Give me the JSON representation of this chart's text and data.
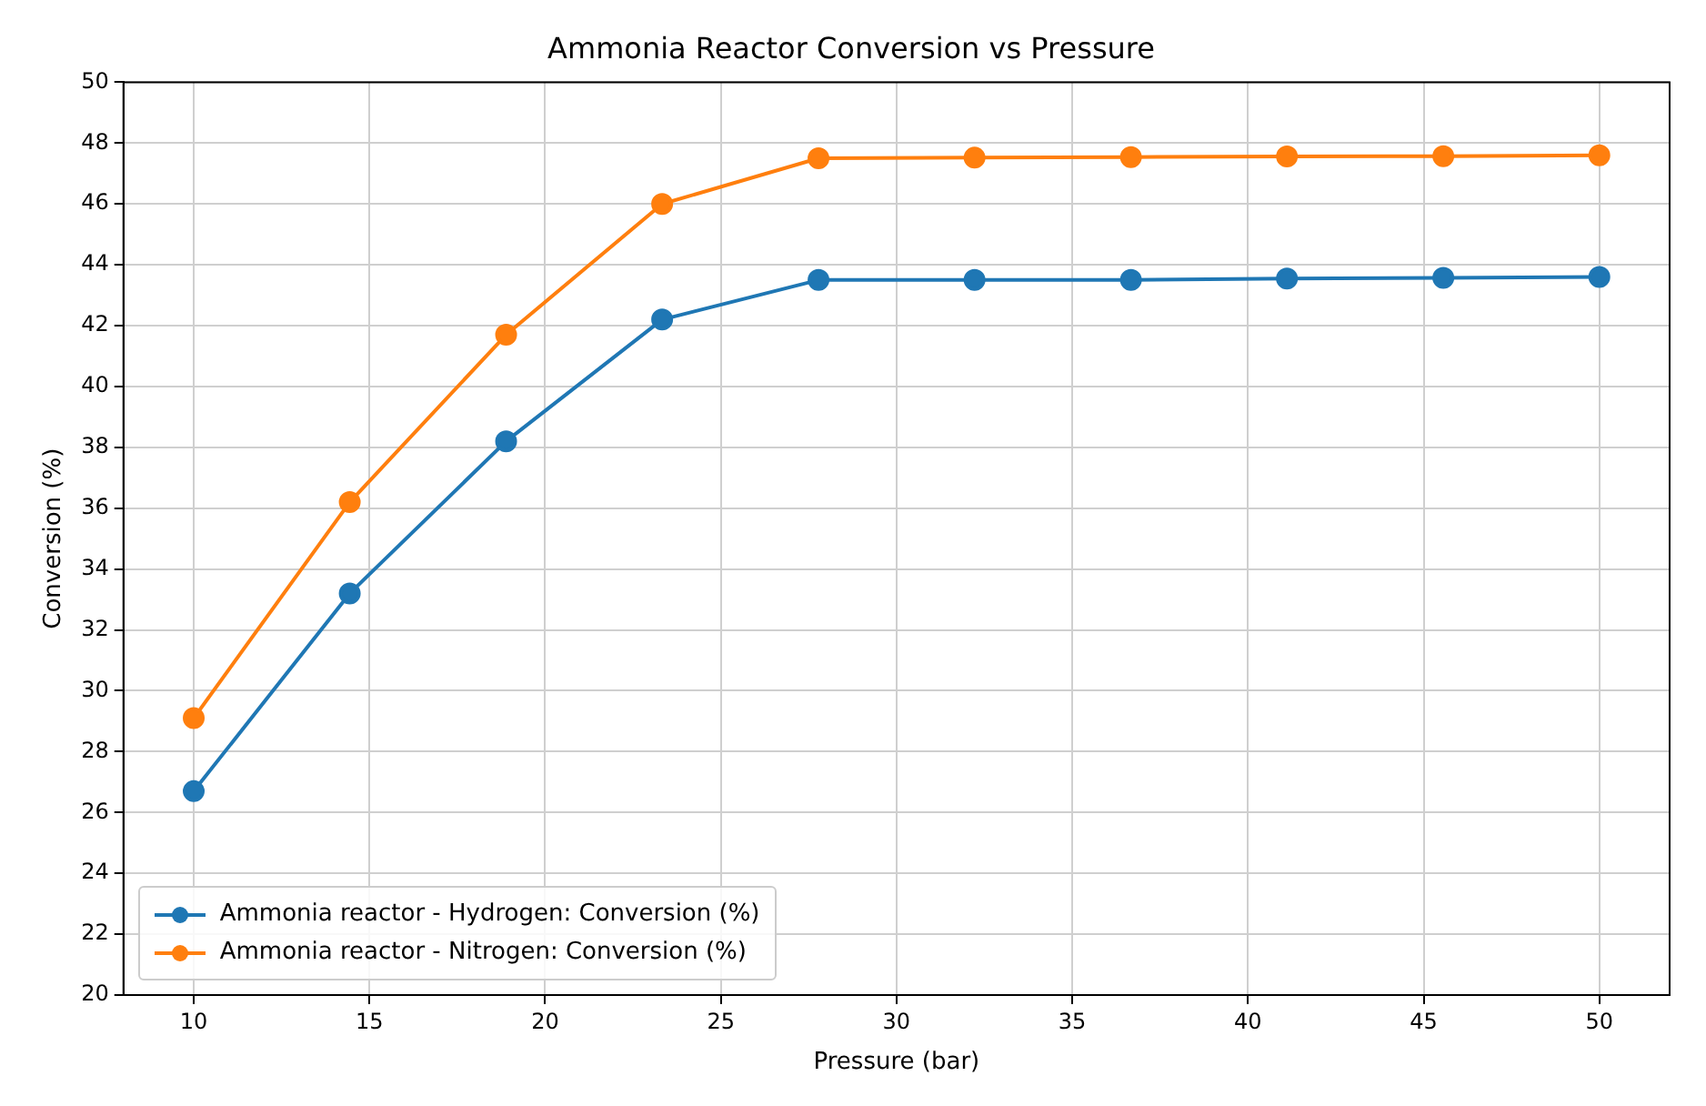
{
  "chart_data": {
    "type": "line",
    "title": "Ammonia Reactor Conversion vs Pressure",
    "xlabel": "Pressure (bar)",
    "ylabel": "Conversion (%)",
    "x": [
      10,
      14.44,
      18.89,
      23.33,
      27.78,
      32.22,
      36.67,
      41.11,
      45.56,
      50
    ],
    "series": [
      {
        "name": "Ammonia reactor - Hydrogen: Conversion (%)",
        "color": "#1f77b4",
        "values": [
          26.7,
          33.2,
          38.2,
          42.2,
          43.5,
          43.5,
          43.5,
          43.55,
          43.57,
          43.6
        ]
      },
      {
        "name": "Ammonia reactor - Nitrogen: Conversion (%)",
        "color": "#ff7f0e",
        "values": [
          29.1,
          36.2,
          41.7,
          46.0,
          47.5,
          47.52,
          47.54,
          47.56,
          47.57,
          47.6
        ]
      }
    ],
    "xlim": [
      8,
      52
    ],
    "xticks": [
      10,
      15,
      20,
      25,
      30,
      35,
      40,
      45,
      50
    ],
    "ylim": [
      20,
      50
    ],
    "yticks": [
      20,
      22,
      24,
      26,
      28,
      30,
      32,
      34,
      36,
      38,
      40,
      42,
      44,
      46,
      48,
      50
    ],
    "grid": true,
    "legend": "bottom left",
    "marker": "circle",
    "line_style": "solid"
  }
}
